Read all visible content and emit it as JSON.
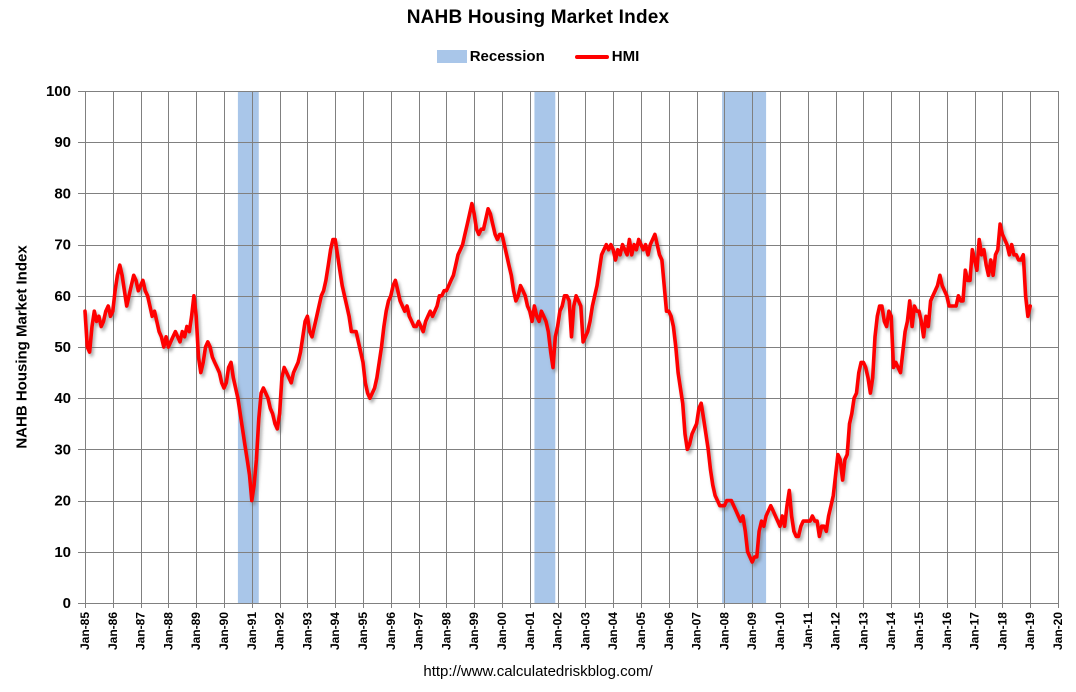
{
  "page": {
    "background": "#FFFFFF"
  },
  "chart_data": {
    "type": "line",
    "title": "NAHB Housing Market Index",
    "ylabel": "NAHB Housing Market Index",
    "footer_url": "http://www.calculatedriskblog.com/",
    "ylim": [
      0,
      100
    ],
    "ytick_interval": 10,
    "grid": true,
    "grid_color": "#808080",
    "legend_position": "top-center",
    "legend": [
      {
        "label": "Recession",
        "type": "box",
        "color": "#A9C6E9"
      },
      {
        "label": "HMI",
        "type": "line",
        "color": "#FF0000"
      }
    ],
    "ytick_labels": [
      "0",
      "10",
      "20",
      "30",
      "40",
      "50",
      "60",
      "70",
      "80",
      "90",
      "100"
    ],
    "xtick_labels": [
      "Jan-85",
      "Jan-86",
      "Jan-87",
      "Jan-88",
      "Jan-89",
      "Jan-90",
      "Jan-91",
      "Jan-92",
      "Jan-93",
      "Jan-94",
      "Jan-95",
      "Jan-96",
      "Jan-97",
      "Jan-98",
      "Jan-99",
      "Jan-00",
      "Jan-01",
      "Jan-02",
      "Jan-03",
      "Jan-04",
      "Jan-05",
      "Jan-06",
      "Jan-07",
      "Jan-08",
      "Jan-09",
      "Jan-10",
      "Jan-11",
      "Jan-12",
      "Jan-13",
      "Jan-14",
      "Jan-15",
      "Jan-16",
      "Jan-17",
      "Jan-18",
      "Jan-19",
      "Jan-20"
    ],
    "recession_bands_month_index": [
      [
        66,
        75
      ],
      [
        194,
        203
      ],
      [
        275,
        294
      ]
    ],
    "series": [
      {
        "name": "HMI",
        "color": "#FF0000",
        "start": "Jan-1985",
        "frequency": "monthly",
        "values": [
          57,
          50,
          49,
          54,
          57,
          55,
          56,
          54,
          55,
          57,
          58,
          56,
          57,
          61,
          64,
          66,
          64,
          61,
          58,
          60,
          62,
          64,
          63,
          61,
          62,
          63,
          61,
          60,
          58,
          56,
          57,
          55,
          53,
          52,
          50,
          52,
          50,
          51,
          52,
          53,
          52,
          51,
          53,
          52,
          54,
          53,
          56,
          60,
          56,
          48,
          45,
          47,
          50,
          51,
          50,
          48,
          47,
          46,
          45,
          43,
          42,
          43,
          46,
          47,
          44,
          42,
          40,
          37,
          34,
          31,
          28,
          25,
          20,
          23,
          28,
          36,
          41,
          42,
          41,
          40,
          38,
          37,
          35,
          34,
          37,
          44,
          46,
          45,
          44,
          43,
          45,
          46,
          47,
          49,
          52,
          55,
          56,
          53,
          52,
          54,
          56,
          58,
          60,
          61,
          63,
          66,
          69,
          71,
          71,
          68,
          65,
          62,
          60,
          58,
          56,
          53,
          53,
          53,
          51,
          49,
          47,
          43,
          41,
          40,
          41,
          42,
          44,
          47,
          50,
          54,
          57,
          59,
          60,
          62,
          63,
          61,
          59,
          58,
          57,
          58,
          56,
          55,
          54,
          54,
          55,
          54,
          53,
          55,
          56,
          57,
          56,
          57,
          58,
          60,
          60,
          61,
          61,
          62,
          63,
          64,
          66,
          68,
          69,
          70,
          72,
          74,
          76,
          78,
          76,
          73,
          72,
          73,
          73,
          75,
          77,
          76,
          74,
          72,
          71,
          72,
          72,
          70,
          68,
          66,
          64,
          61,
          59,
          60,
          62,
          61,
          60,
          58,
          57,
          55,
          58,
          56,
          55,
          57,
          56,
          55,
          53,
          49,
          46,
          52,
          54,
          57,
          58,
          60,
          60,
          59,
          52,
          58,
          60,
          59,
          58,
          51,
          52,
          53,
          55,
          58,
          60,
          62,
          65,
          68,
          69,
          70,
          69,
          70,
          69,
          67,
          69,
          68,
          70,
          69,
          68,
          71,
          68,
          70,
          69,
          71,
          70,
          69,
          70,
          68,
          70,
          71,
          72,
          70,
          68,
          67,
          62,
          57,
          57,
          56,
          54,
          50,
          45,
          42,
          39,
          33,
          30,
          31,
          33,
          34,
          35,
          38,
          39,
          36,
          33,
          30,
          26,
          23,
          21,
          20,
          19,
          19,
          19,
          20,
          20,
          20,
          19,
          18,
          17,
          16,
          17,
          14,
          10,
          9,
          8,
          9,
          9,
          14,
          16,
          15,
          17,
          18,
          19,
          18,
          17,
          16,
          15,
          17,
          15,
          19,
          22,
          17,
          14,
          13,
          13,
          15,
          16,
          16,
          16,
          16,
          17,
          16,
          16,
          13,
          15,
          15,
          14,
          17,
          19,
          21,
          25,
          29,
          28,
          24,
          28,
          29,
          35,
          37,
          40,
          41,
          45,
          47,
          47,
          46,
          44,
          41,
          44,
          52,
          56,
          58,
          58,
          55,
          54,
          57,
          56,
          46,
          47,
          46,
          45,
          49,
          53,
          55,
          59,
          54,
          58,
          57,
          57,
          55,
          52,
          56,
          54,
          59,
          60,
          61,
          62,
          64,
          62,
          61,
          60,
          58,
          58,
          58,
          58,
          60,
          59,
          59,
          65,
          63,
          63,
          69,
          67,
          65,
          71,
          68,
          69,
          66,
          64,
          67,
          64,
          68,
          69,
          74,
          72,
          71,
          70,
          68,
          70,
          68,
          68,
          67,
          67,
          68,
          60,
          56,
          58
        ]
      }
    ]
  }
}
